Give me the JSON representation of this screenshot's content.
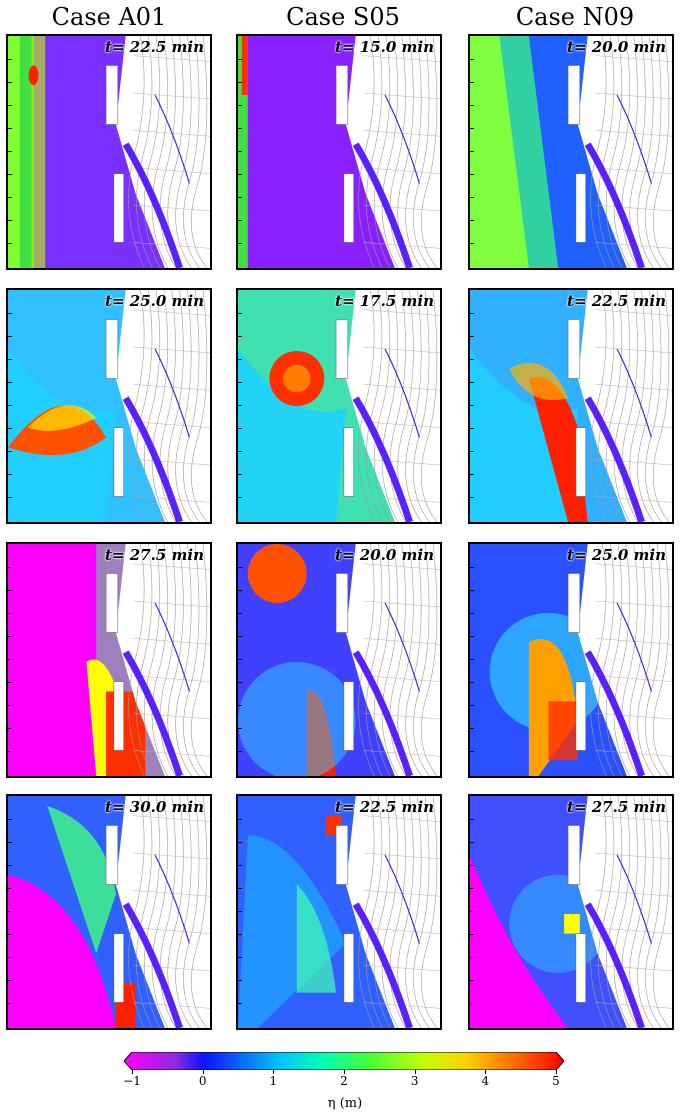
{
  "columns": [
    {
      "title": "Case A01",
      "times": [
        "t= 22.5 min",
        "t= 25.0 min",
        "t= 27.5 min",
        "t= 30.0 min"
      ]
    },
    {
      "title": "Case S05",
      "times": [
        "t= 15.0 min",
        "t= 17.5 min",
        "t= 20.0 min",
        "t= 22.5 min"
      ]
    },
    {
      "title": "Case N09",
      "times": [
        "t= 20.0 min",
        "t= 22.5 min",
        "t= 25.0 min",
        "t= 27.5 min"
      ]
    }
  ],
  "colorbar": {
    "ticks": [
      "−1",
      "0",
      "1",
      "2",
      "3",
      "4",
      "5"
    ],
    "label": "η (m)",
    "range": [
      -1,
      5
    ],
    "colors": [
      "#ff00ff",
      "#8a2be2",
      "#1010ff",
      "#00c0ff",
      "#00ff80",
      "#80ff00",
      "#ffff00",
      "#ff8000",
      "#ff0000"
    ]
  }
}
